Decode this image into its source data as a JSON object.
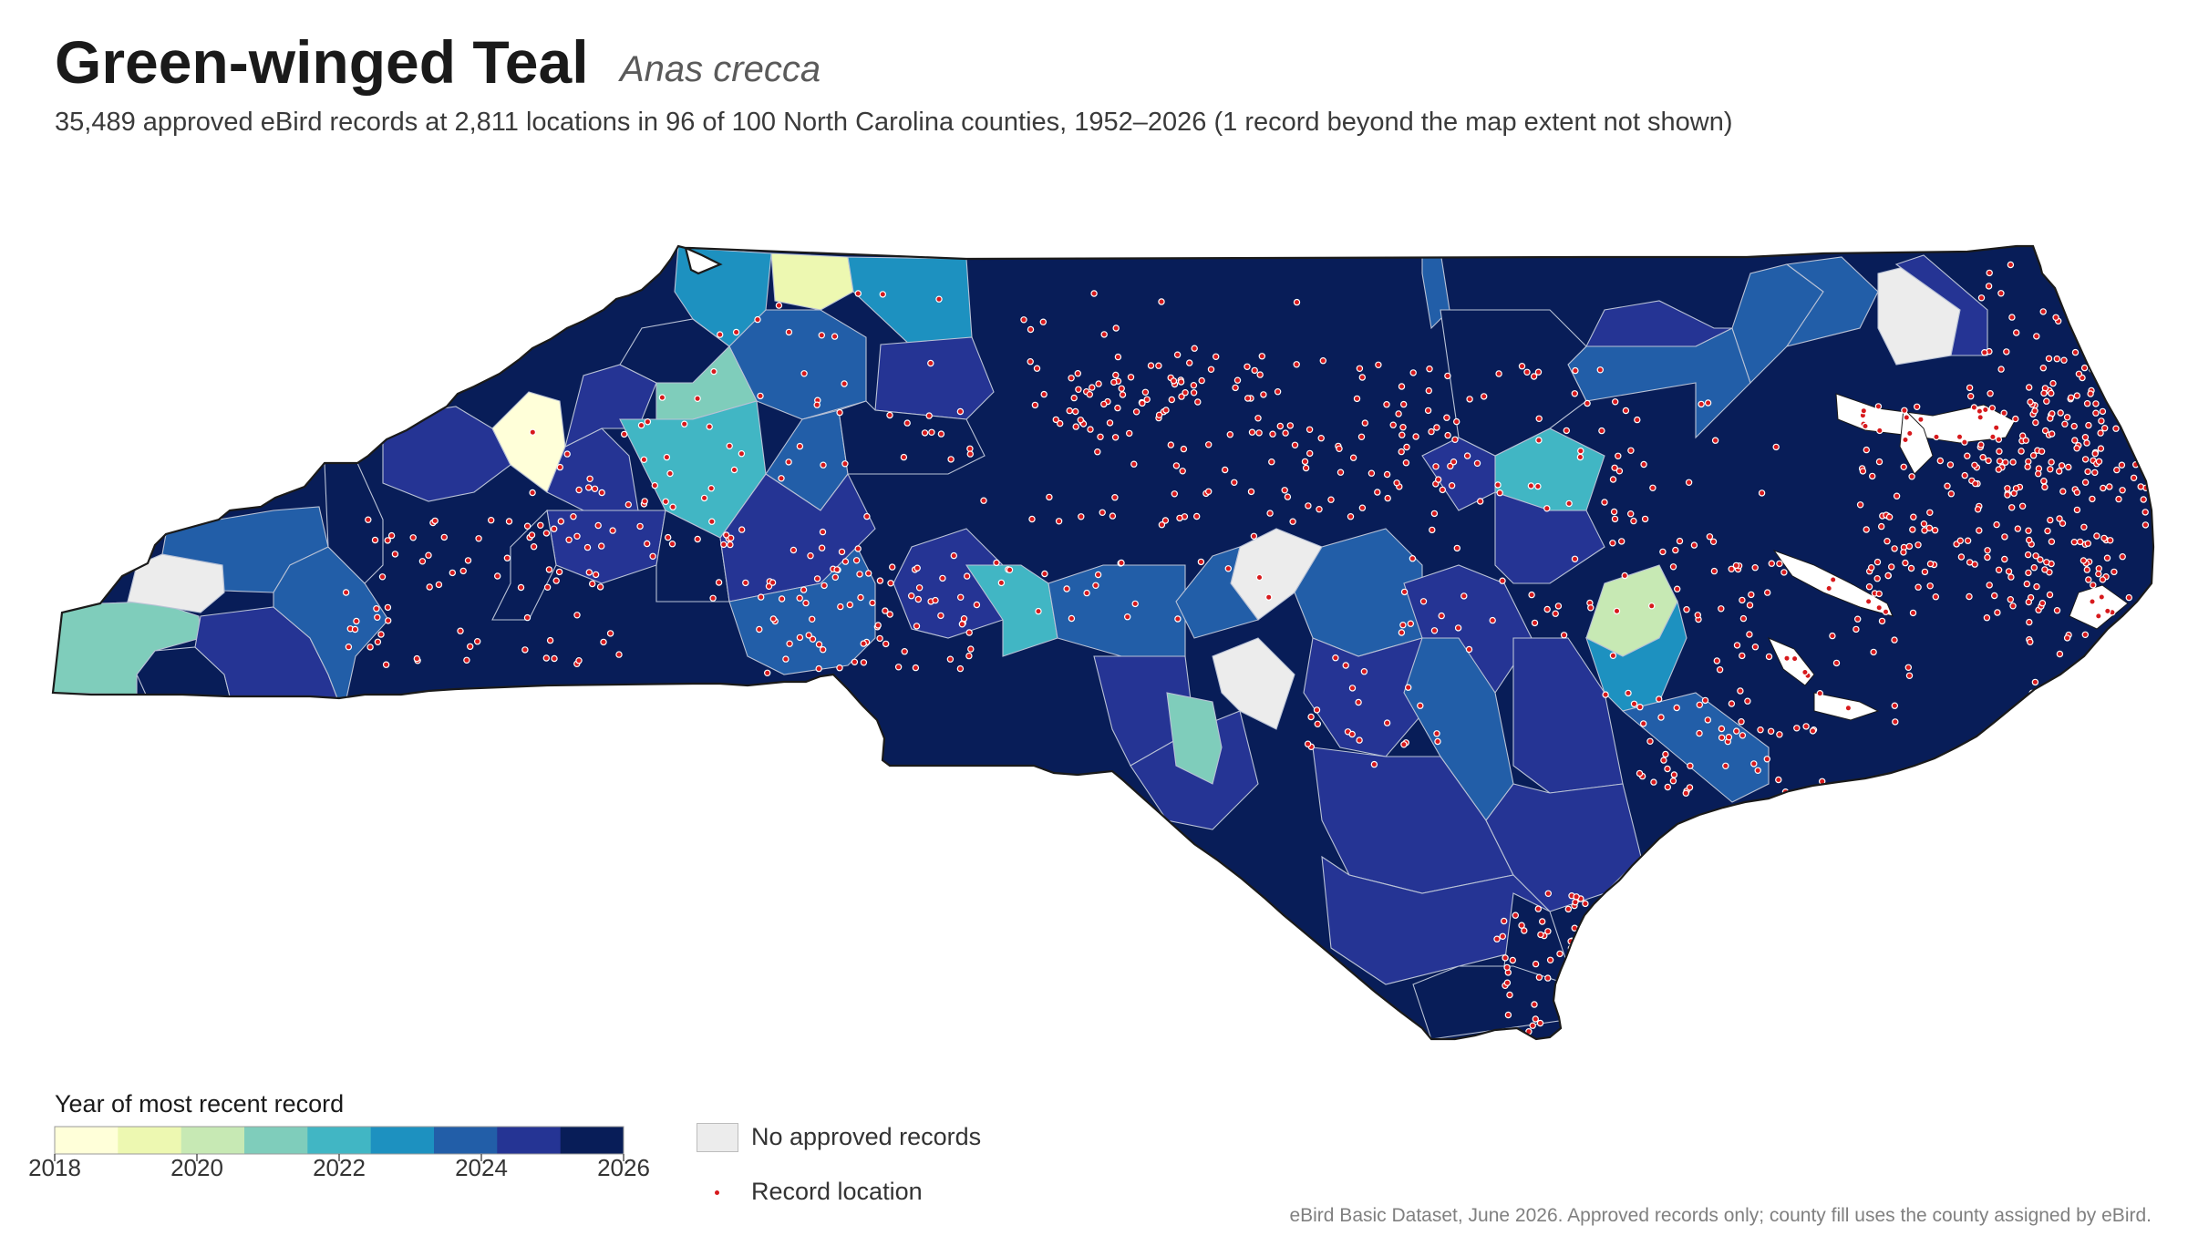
{
  "header": {
    "title": "Green-winged Teal",
    "scientific_name": "Anas crecca",
    "subtitle": "35,489 approved eBird records at 2,811 locations in 96 of 100 North Carolina counties, 1952–2026 (1 record beyond the map extent not shown)"
  },
  "legend": {
    "title": "Year of most recent record",
    "scale_min": 2018,
    "scale_max": 2026,
    "tick_labels": [
      "2018",
      "2020",
      "2022",
      "2024",
      "2026"
    ],
    "colors": [
      "#ffffd9",
      "#edf8b1",
      "#c7e9b4",
      "#7fcdbb",
      "#41b6c4",
      "#1d91c0",
      "#225ea8",
      "#253494",
      "#081d58"
    ],
    "no_data_label": "No approved records",
    "no_data_color": "#ececec",
    "record_label": "Record location",
    "record_color": "#d7191c"
  },
  "source": "eBird Basic Dataset, June 2026. Approved records only; county fill uses the county assigned by eBird."
}
